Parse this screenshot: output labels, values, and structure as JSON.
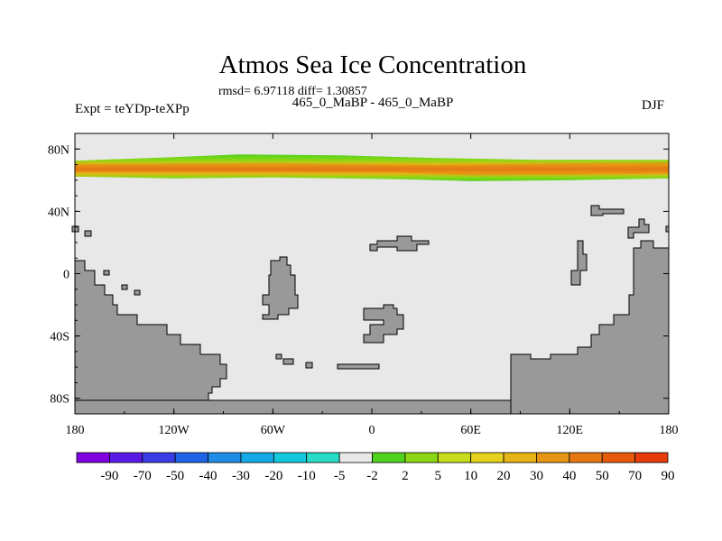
{
  "chart_data": {
    "type": "heatmap",
    "title": "Atmos Sea Ice Concentration",
    "stats_text": "rmsd= 6.97118 diff= 1.30857",
    "subtitle": "465_0_MaBP - 465_0_MaBP",
    "left_label": "Expt = teYDp-teXPp",
    "right_label": "DJF",
    "xlim": [
      -180,
      180
    ],
    "ylim": [
      -90,
      90
    ],
    "x_ticks": [
      {
        "value": -180,
        "label": "180"
      },
      {
        "value": -120,
        "label": "120W"
      },
      {
        "value": -60,
        "label": "60W"
      },
      {
        "value": 0,
        "label": "0"
      },
      {
        "value": 60,
        "label": "60E"
      },
      {
        "value": 120,
        "label": "120E"
      },
      {
        "value": 180,
        "label": "180"
      }
    ],
    "y_ticks": [
      {
        "value": 80,
        "label": "80N"
      },
      {
        "value": 40,
        "label": "40N"
      },
      {
        "value": 0,
        "label": "0"
      },
      {
        "value": -40,
        "label": "40S"
      },
      {
        "value": -80,
        "label": "80S"
      }
    ],
    "ice_band": {
      "lat_min": 60,
      "lat_max": 76,
      "core_lat_min": 62,
      "core_lat_max": 72,
      "peak_value": 70
    },
    "colorbar": {
      "colors": [
        "#8000e0",
        "#5a1ae6",
        "#3c3ce6",
        "#1e64e6",
        "#1e8ce6",
        "#14aae6",
        "#14c8dc",
        "#28dcc8",
        "#e8e8e8",
        "#50d21e",
        "#8cd714",
        "#c8dc1e",
        "#e6d21e",
        "#e6b414",
        "#e69614",
        "#e67814",
        "#e65a0a",
        "#e63c0a"
      ],
      "labels": [
        "-90",
        "-70",
        "-50",
        "-40",
        "-30",
        "-20",
        "-10",
        "-5",
        "-2",
        "2",
        "5",
        "10",
        "20",
        "30",
        "40",
        "50",
        "70",
        "90"
      ]
    },
    "colors": {
      "land": "#999999",
      "ocean": "#e8e8e8",
      "outline": "#000000"
    }
  }
}
